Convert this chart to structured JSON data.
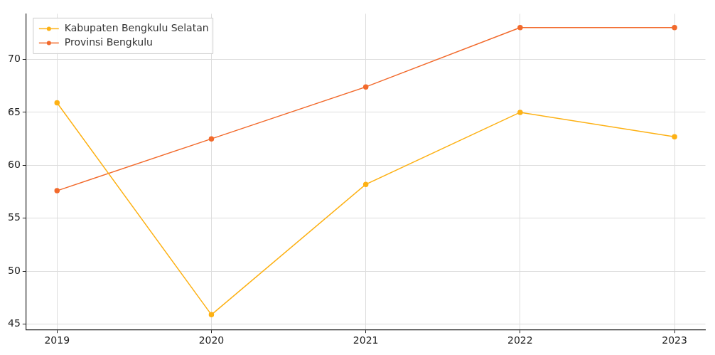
{
  "chart_data": {
    "type": "line",
    "x": [
      2019,
      2020,
      2021,
      2022,
      2023
    ],
    "series": [
      {
        "name": "Kabupaten Bengkulu Selatan",
        "color": "#fdb114",
        "values": [
          65.9,
          45.9,
          58.2,
          65.0,
          62.7
        ]
      },
      {
        "name": "Provinsi Bengkulu",
        "color": "#f26a2c",
        "values": [
          57.6,
          62.5,
          67.4,
          73.0,
          73.0
        ]
      }
    ],
    "xlim": [
      2018.8,
      2023.2
    ],
    "xticks": [
      2019,
      2020,
      2021,
      2022,
      2023
    ],
    "ylim": [
      44.5,
      74.3
    ],
    "yticks": [
      45,
      50,
      55,
      60,
      65,
      70
    ],
    "grid": true,
    "legend": "top left",
    "marker": "circle",
    "line_style": "solid"
  }
}
